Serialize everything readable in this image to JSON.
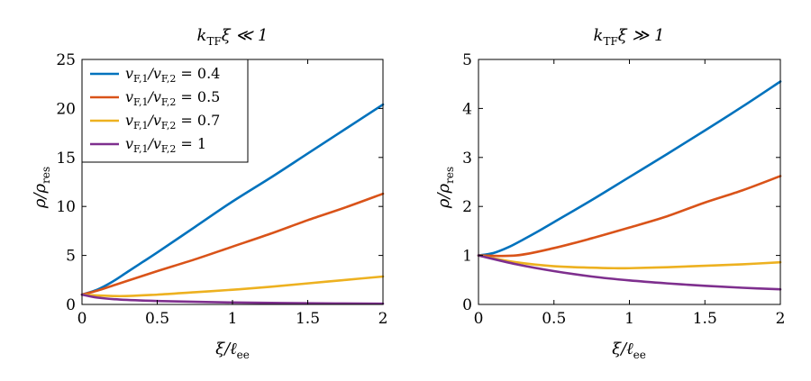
{
  "colors": {
    "blue": "#0072bd",
    "orange": "#d95319",
    "yellow": "#edb120",
    "purple": "#7e2f8e"
  },
  "chart_data": [
    {
      "type": "line",
      "title": "k_TF ξ ≪ 1",
      "xlabel": "ξ/ℓ_ee",
      "ylabel": "ρ/ρ_res",
      "xlim": [
        0,
        2
      ],
      "ylim": [
        0,
        25
      ],
      "xticks": [
        "0",
        "0.5",
        "1",
        "1.5",
        "2"
      ],
      "yticks": [
        "0",
        "5",
        "10",
        "15",
        "20",
        "25"
      ],
      "legend_position": "top-left",
      "grid": false,
      "series": [
        {
          "name": "v_F,1/v_F,2 = 0.4",
          "color": "#0072bd",
          "x": [
            0,
            0.1,
            0.2,
            0.3,
            0.4,
            0.5,
            0.75,
            1.0,
            1.25,
            1.5,
            1.75,
            2.0
          ],
          "y": [
            1.0,
            1.5,
            2.3,
            3.3,
            4.3,
            5.3,
            7.9,
            10.5,
            12.9,
            15.4,
            17.9,
            20.4
          ]
        },
        {
          "name": "v_F,1/v_F,2 = 0.5",
          "color": "#d95319",
          "x": [
            0,
            0.1,
            0.2,
            0.3,
            0.5,
            0.75,
            1.0,
            1.25,
            1.5,
            1.75,
            2.0
          ],
          "y": [
            1.0,
            1.4,
            1.9,
            2.4,
            3.4,
            4.6,
            5.9,
            7.2,
            8.6,
            9.9,
            11.3
          ]
        },
        {
          "name": "v_F,1/v_F,2 = 0.7",
          "color": "#edb120",
          "x": [
            0,
            0.25,
            0.5,
            0.75,
            1.0,
            1.25,
            1.5,
            1.75,
            2.0
          ],
          "y": [
            1.0,
            0.85,
            1.0,
            1.25,
            1.5,
            1.8,
            2.15,
            2.5,
            2.85
          ]
        },
        {
          "name": "v_F,1/v_F,2 = 1",
          "color": "#7e2f8e",
          "x": [
            0,
            0.1,
            0.25,
            0.5,
            0.75,
            1.0,
            1.5,
            2.0
          ],
          "y": [
            1.0,
            0.7,
            0.5,
            0.35,
            0.27,
            0.2,
            0.12,
            0.08
          ]
        }
      ]
    },
    {
      "type": "line",
      "title": "k_TF ξ ≫ 1",
      "xlabel": "ξ/ℓ_ee",
      "ylabel": "ρ/ρ_res",
      "xlim": [
        0,
        2
      ],
      "ylim": [
        0,
        5
      ],
      "xticks": [
        "0",
        "0.5",
        "1",
        "1.5",
        "2"
      ],
      "yticks": [
        "0",
        "1",
        "2",
        "3",
        "4",
        "5"
      ],
      "grid": false,
      "series": [
        {
          "color": "#0072bd",
          "x": [
            0,
            0.1,
            0.2,
            0.3,
            0.4,
            0.5,
            0.75,
            1.0,
            1.25,
            1.5,
            1.75,
            2.0
          ],
          "y": [
            1.0,
            1.05,
            1.17,
            1.33,
            1.5,
            1.68,
            2.13,
            2.6,
            3.07,
            3.55,
            4.04,
            4.55
          ]
        },
        {
          "color": "#d95319",
          "x": [
            0,
            0.25,
            0.5,
            0.75,
            1.0,
            1.25,
            1.5,
            1.75,
            2.0
          ],
          "y": [
            1.0,
            1.0,
            1.15,
            1.35,
            1.57,
            1.8,
            2.08,
            2.33,
            2.62
          ]
        },
        {
          "color": "#edb120",
          "x": [
            0,
            0.25,
            0.5,
            0.75,
            0.9,
            1.0,
            1.25,
            1.5,
            1.75,
            2.0
          ],
          "y": [
            1.0,
            0.86,
            0.78,
            0.75,
            0.74,
            0.74,
            0.76,
            0.79,
            0.82,
            0.86
          ]
        },
        {
          "color": "#7e2f8e",
          "x": [
            0,
            0.25,
            0.5,
            0.75,
            1.0,
            1.25,
            1.5,
            1.75,
            2.0
          ],
          "y": [
            1.0,
            0.82,
            0.68,
            0.57,
            0.49,
            0.43,
            0.38,
            0.34,
            0.31
          ]
        }
      ]
    }
  ],
  "labels": {
    "left_title_k": "k",
    "left_title_sub": "TF",
    "left_title_rest": "ξ ≪ 1",
    "right_title_k": "k",
    "right_title_sub": "TF",
    "right_title_rest": "ξ ≫ 1",
    "xlabel_main": "ξ/ℓ",
    "xlabel_sub": "ee",
    "ylabel_main": "ρ/ρ",
    "ylabel_sub": "res",
    "legend_v": "v",
    "legend_sub1": "F,1",
    "legend_slash": "/v",
    "legend_sub2": "F,2",
    "legend_values": [
      "= 0.4",
      "= 0.5",
      "= 0.7",
      "= 1"
    ]
  }
}
